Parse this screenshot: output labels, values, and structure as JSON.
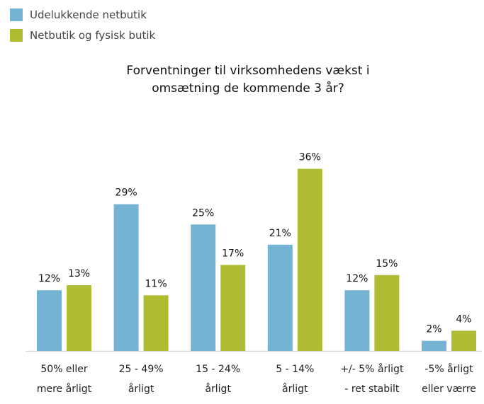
{
  "chart_data": {
    "type": "bar",
    "title": "Forventninger til virksomhedens vækst i omsætning de kommende 3 år?",
    "title_lines": [
      "Forventninger til virksomhedens vækst i",
      "omsætning de kommende 3 år?"
    ],
    "categories": [
      [
        "50% eller",
        "mere årligt"
      ],
      [
        "25 - 49%",
        "årligt"
      ],
      [
        "15 - 24%",
        "årligt"
      ],
      [
        "5 - 14%",
        "årligt"
      ],
      [
        "+/- 5% årligt",
        "- ret stabilt"
      ],
      [
        "-5% årligt",
        "eller værre"
      ]
    ],
    "series": [
      {
        "name": "Udelukkende netbutik",
        "color": "#74b3d1",
        "values": [
          12,
          29,
          25,
          21,
          12,
          2
        ]
      },
      {
        "name": "Netbutik og fysisk butik",
        "color": "#b0bd33",
        "values": [
          13,
          11,
          17,
          36,
          15,
          4
        ]
      }
    ],
    "value_suffix": "%",
    "xlabel": "",
    "ylabel": "",
    "ylim": [
      0,
      36
    ],
    "grid": false,
    "legend_position": "top-left"
  }
}
